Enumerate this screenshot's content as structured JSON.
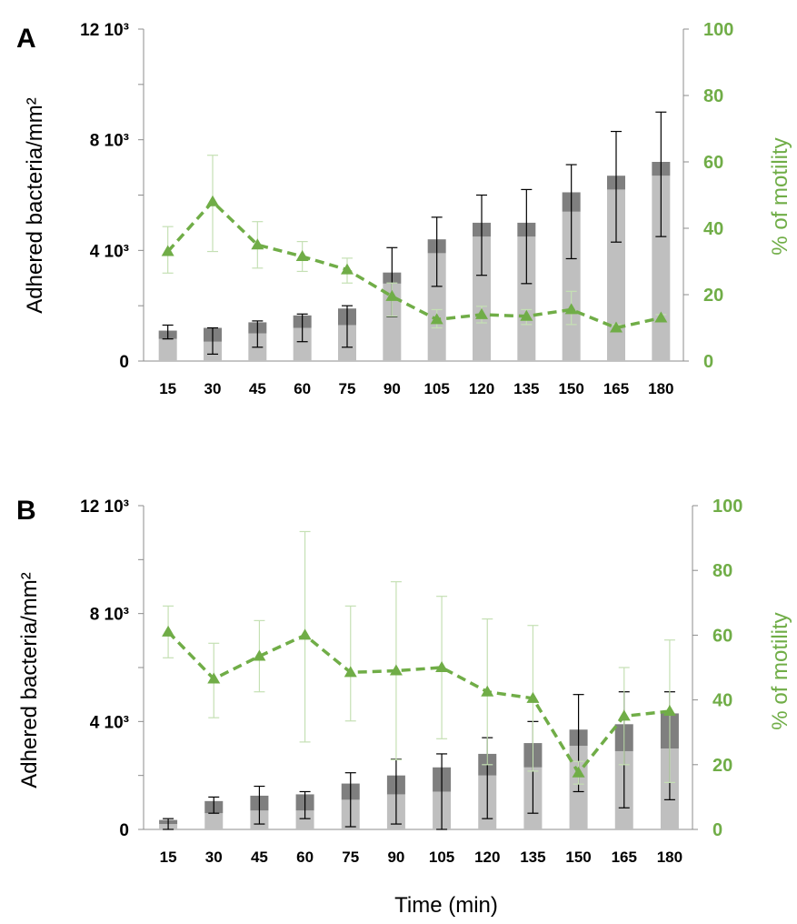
{
  "chart_data": [
    {
      "type": "bar",
      "panel": "A",
      "xlabel": "",
      "ylabel": "Adhered bacteria/mm²",
      "ylabel_right": "% of motility",
      "categories": [
        "15",
        "30",
        "45",
        "60",
        "75",
        "90",
        "105",
        "120",
        "135",
        "150",
        "165",
        "180"
      ],
      "ylim": [
        0,
        12000
      ],
      "ylim_right": [
        0,
        100
      ],
      "yticks_left": [
        {
          "value": 0,
          "label": "0"
        },
        {
          "value": 4000,
          "label": "4 10³"
        },
        {
          "value": 8000,
          "label": "8 10³"
        },
        {
          "value": 12000,
          "label": "12 10³"
        }
      ],
      "yticks_right": [
        0,
        20,
        40,
        60,
        80,
        100
      ],
      "stacked_bars": {
        "lower_values": [
          800,
          700,
          1000,
          1200,
          1300,
          2800,
          3900,
          4500,
          4500,
          5400,
          6200,
          6700
        ],
        "upper_values": [
          300,
          500,
          400,
          450,
          600,
          400,
          500,
          500,
          500,
          700,
          500,
          500
        ],
        "totals": [
          1100,
          1200,
          1400,
          1650,
          1900,
          3200,
          4400,
          5000,
          5000,
          6100,
          6700,
          7200
        ],
        "lower_color": "#bfbfbf",
        "upper_color": "#7f7f7f",
        "err_upper": [
          1300,
          1200,
          1450,
          1700,
          2000,
          4100,
          5200,
          6000,
          6200,
          7100,
          8300,
          9000
        ],
        "err_lower": [
          800,
          250,
          500,
          700,
          500,
          1600,
          2700,
          3100,
          2800,
          3700,
          4300,
          4500
        ]
      },
      "line_series": {
        "values": [
          33,
          48,
          35,
          31.5,
          27.5,
          19.5,
          12.5,
          14,
          13.5,
          15.5,
          10,
          13
        ],
        "err_upper": [
          40.5,
          62,
          42,
          36,
          31,
          23.5,
          15.5,
          16.5,
          15.5,
          21,
          11,
          14
        ],
        "err_lower": [
          26.5,
          33,
          28,
          27,
          23.5,
          13.5,
          10,
          11.5,
          11,
          11,
          9,
          12
        ],
        "color": "#70ad47"
      }
    },
    {
      "type": "bar",
      "panel": "B",
      "xlabel": "Time (min)",
      "ylabel": "Adhered bacteria/mm²",
      "ylabel_right": "% of motility",
      "categories": [
        "15",
        "30",
        "45",
        "60",
        "75",
        "90",
        "105",
        "120",
        "135",
        "150",
        "165",
        "180"
      ],
      "ylim": [
        0,
        12000
      ],
      "ylim_right": [
        0,
        100
      ],
      "yticks_left": [
        {
          "value": 0,
          "label": "0"
        },
        {
          "value": 4000,
          "label": "4 10³"
        },
        {
          "value": 8000,
          "label": "8 10³"
        },
        {
          "value": 12000,
          "label": "12 10³"
        }
      ],
      "yticks_right": [
        0,
        20,
        40,
        60,
        80,
        100
      ],
      "stacked_bars": {
        "lower_values": [
          200,
          600,
          700,
          700,
          1100,
          1300,
          1400,
          2000,
          2300,
          3100,
          2900,
          3000
        ],
        "upper_values": [
          150,
          450,
          550,
          600,
          600,
          700,
          900,
          800,
          900,
          600,
          1000,
          1300
        ],
        "totals": [
          350,
          1050,
          1250,
          1300,
          1700,
          2000,
          2300,
          2800,
          3200,
          3700,
          3900,
          4300
        ],
        "lower_color": "#bfbfbf",
        "upper_color": "#7f7f7f",
        "err_upper": [
          400,
          1200,
          1600,
          1400,
          2100,
          2600,
          2800,
          3400,
          4000,
          5000,
          5100,
          5100
        ],
        "err_lower": [
          0,
          600,
          200,
          400,
          100,
          200,
          0,
          400,
          600,
          1400,
          800,
          1100
        ]
      },
      "line_series": {
        "values": [
          61,
          46.5,
          53.5,
          60,
          48.5,
          49,
          50,
          42.5,
          40.5,
          17.5,
          35,
          36.5
        ],
        "err_upper": [
          69,
          57.5,
          64.5,
          92,
          69,
          76.5,
          72,
          65,
          63,
          21,
          50,
          58.5
        ],
        "err_lower": [
          53,
          34.5,
          42.5,
          27,
          33.5,
          21.5,
          28,
          20,
          18,
          14,
          20,
          14.5
        ],
        "color": "#70ad47"
      }
    }
  ]
}
